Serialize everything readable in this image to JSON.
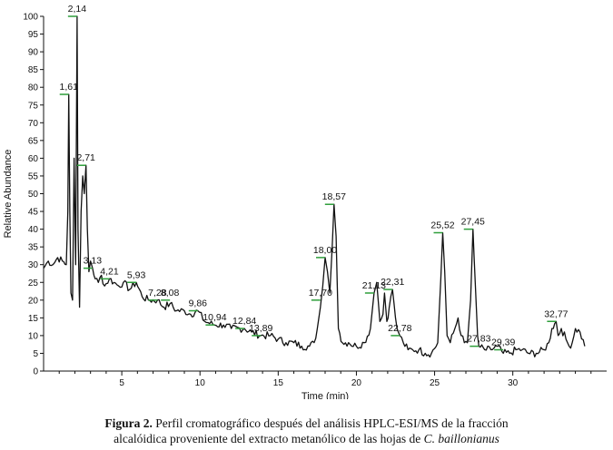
{
  "chart_data": {
    "type": "line",
    "xlabel": "Time (min)",
    "ylabel": "Relative Abundance",
    "xlim": [
      0,
      36
    ],
    "ylim": [
      0,
      100
    ],
    "xticks": [
      5,
      10,
      15,
      20,
      25,
      30
    ],
    "yticks": [
      0,
      5,
      10,
      15,
      20,
      25,
      30,
      35,
      40,
      45,
      50,
      55,
      60,
      65,
      70,
      75,
      80,
      85,
      90,
      95,
      100
    ],
    "grid": false,
    "line_color": "#111111",
    "peak_marker_color": "#2e9e3a",
    "series": [
      {
        "x": [
          0,
          0.3,
          0.6,
          0.9,
          1.2,
          1.45,
          1.55,
          1.61,
          1.68,
          1.75,
          1.85,
          1.95,
          2.05,
          2.14,
          2.2,
          2.3,
          2.4,
          2.5,
          2.6,
          2.71,
          2.8,
          2.9,
          3.0,
          3.13,
          3.3,
          3.5,
          3.7,
          3.9,
          4.21,
          4.5,
          4.8,
          5.1,
          5.5,
          5.93,
          6.3,
          6.7,
          7.28,
          7.7,
          8.08,
          8.5,
          9.0,
          9.4,
          9.86,
          10.3,
          10.94,
          11.5,
          12.0,
          12.84,
          13.3,
          13.89,
          14.5,
          15.0,
          15.5,
          16.0,
          16.5,
          17.0,
          17.3,
          17.5,
          17.7,
          17.85,
          18.0,
          18.15,
          18.3,
          18.45,
          18.57,
          18.7,
          18.85,
          19.1,
          19.5,
          20.0,
          20.5,
          20.9,
          21.13,
          21.3,
          21.5,
          21.7,
          21.8,
          21.95,
          22.1,
          22.31,
          22.5,
          22.6,
          22.78,
          23.0,
          23.3,
          23.6,
          24.0,
          24.4,
          24.8,
          25.2,
          25.4,
          25.52,
          25.65,
          25.8,
          26.0,
          26.3,
          26.5,
          26.7,
          26.9,
          27.1,
          27.3,
          27.45,
          27.6,
          27.75,
          27.83,
          28.2,
          28.6,
          29.0,
          29.39,
          29.8,
          30.2,
          30.6,
          31.0,
          31.5,
          32.0,
          32.3,
          32.5,
          32.77,
          32.9,
          33.1,
          33.4,
          33.6,
          33.8,
          34.0,
          34.3,
          34.6
        ],
        "y": [
          29,
          31,
          30,
          32,
          31,
          30,
          45,
          78,
          45,
          22,
          20,
          60,
          30,
          100,
          40,
          18,
          45,
          55,
          50,
          58,
          40,
          28,
          31,
          29,
          26,
          25,
          27,
          24,
          26,
          25,
          24,
          25,
          23,
          25,
          21,
          20,
          20,
          18,
          19,
          17,
          17,
          16,
          17,
          14,
          13,
          13,
          12,
          12,
          11,
          10,
          10,
          9,
          8,
          8,
          7,
          7,
          8,
          12,
          18,
          24,
          32,
          28,
          22,
          35,
          47,
          38,
          12,
          8,
          8,
          7,
          8,
          12,
          22,
          25,
          14,
          16,
          22,
          14,
          18,
          23,
          15,
          12,
          10,
          8,
          6,
          6,
          6,
          5,
          5,
          8,
          26,
          39,
          28,
          10,
          8,
          12,
          15,
          10,
          8,
          8,
          20,
          40,
          25,
          10,
          7,
          6,
          6,
          7,
          5,
          5,
          6,
          6,
          5,
          5,
          6,
          8,
          12,
          14,
          10,
          12,
          9,
          7,
          8,
          12,
          11,
          7
        ]
      }
    ],
    "annotations": [
      {
        "label": "1,61",
        "x": 1.61,
        "y": 78
      },
      {
        "label": "2,14",
        "x": 2.14,
        "y": 100
      },
      {
        "label": "2,71",
        "x": 2.71,
        "y": 58
      },
      {
        "label": "3,13",
        "x": 3.13,
        "y": 29
      },
      {
        "label": "4,21",
        "x": 4.21,
        "y": 26
      },
      {
        "label": "5,93",
        "x": 5.93,
        "y": 25
      },
      {
        "label": "7,28",
        "x": 7.28,
        "y": 20
      },
      {
        "label": "8,08",
        "x": 8.08,
        "y": 20
      },
      {
        "label": "9,86",
        "x": 9.86,
        "y": 17
      },
      {
        "label": "10,94",
        "x": 10.94,
        "y": 13
      },
      {
        "label": "12,84",
        "x": 12.84,
        "y": 12
      },
      {
        "label": "13,89",
        "x": 13.89,
        "y": 10
      },
      {
        "label": "17,70",
        "x": 17.7,
        "y": 20
      },
      {
        "label": "18,00",
        "x": 18.0,
        "y": 32
      },
      {
        "label": "18,57",
        "x": 18.57,
        "y": 47
      },
      {
        "label": "21,13",
        "x": 21.13,
        "y": 22
      },
      {
        "label": "22,31",
        "x": 22.31,
        "y": 23
      },
      {
        "label": "22,78",
        "x": 22.78,
        "y": 10
      },
      {
        "label": "25,52",
        "x": 25.52,
        "y": 39
      },
      {
        "label": "27,45",
        "x": 27.45,
        "y": 40
      },
      {
        "label": "27,83",
        "x": 27.83,
        "y": 7
      },
      {
        "label": "29,39",
        "x": 29.39,
        "y": 6
      },
      {
        "label": "32,77",
        "x": 32.77,
        "y": 14
      }
    ]
  },
  "caption": {
    "figure_number": "Figura 2.",
    "text_line1": "Perfil cromatográfico después del análisis HPLC-ESI/MS de la fracción",
    "text_line2": "alcalóidica proveniente del extracto metanólico de las hojas de",
    "species": "C. baillonianus"
  }
}
